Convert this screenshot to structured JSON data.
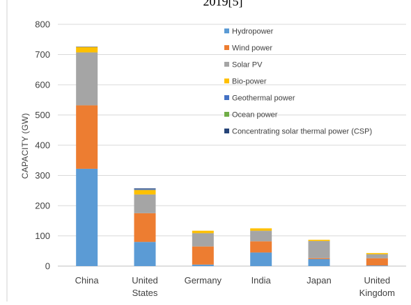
{
  "title_fragment": "2019[5]",
  "chart_data": {
    "type": "bar",
    "stacked": true,
    "categories": [
      [
        "China"
      ],
      [
        "United",
        "States"
      ],
      [
        "Germany"
      ],
      [
        "India"
      ],
      [
        "Japan"
      ],
      [
        "United",
        "Kingdom"
      ]
    ],
    "ylabel": "CAPACITY (GW)",
    "ylim": [
      0,
      800
    ],
    "yticks": [
      0,
      100,
      200,
      300,
      400,
      500,
      600,
      700,
      800
    ],
    "grid": true,
    "legend_position": "top-right",
    "series": [
      {
        "name": "Hydropower",
        "color": "#5B9BD5",
        "values": [
          322,
          80,
          5,
          45,
          23,
          2
        ]
      },
      {
        "name": "Wind power",
        "color": "#ED7D31",
        "values": [
          210,
          95,
          60,
          37,
          3,
          24
        ]
      },
      {
        "name": "Solar PV",
        "color": "#A5A5A5",
        "values": [
          175,
          62,
          44,
          35,
          57,
          13
        ]
      },
      {
        "name": "Bio-power",
        "color": "#FFC000",
        "values": [
          18,
          15,
          8,
          8,
          4,
          4
        ]
      },
      {
        "name": "Geothermal power",
        "color": "#4472C4",
        "values": [
          0,
          3,
          0,
          0,
          0,
          0
        ]
      },
      {
        "name": "Ocean power",
        "color": "#70AD47",
        "values": [
          0,
          0,
          0,
          0,
          0,
          0
        ]
      },
      {
        "name": "Concentrating solar thermal power (CSP)",
        "color": "#264478",
        "values": [
          1,
          2,
          0,
          0,
          0,
          0
        ]
      }
    ]
  }
}
